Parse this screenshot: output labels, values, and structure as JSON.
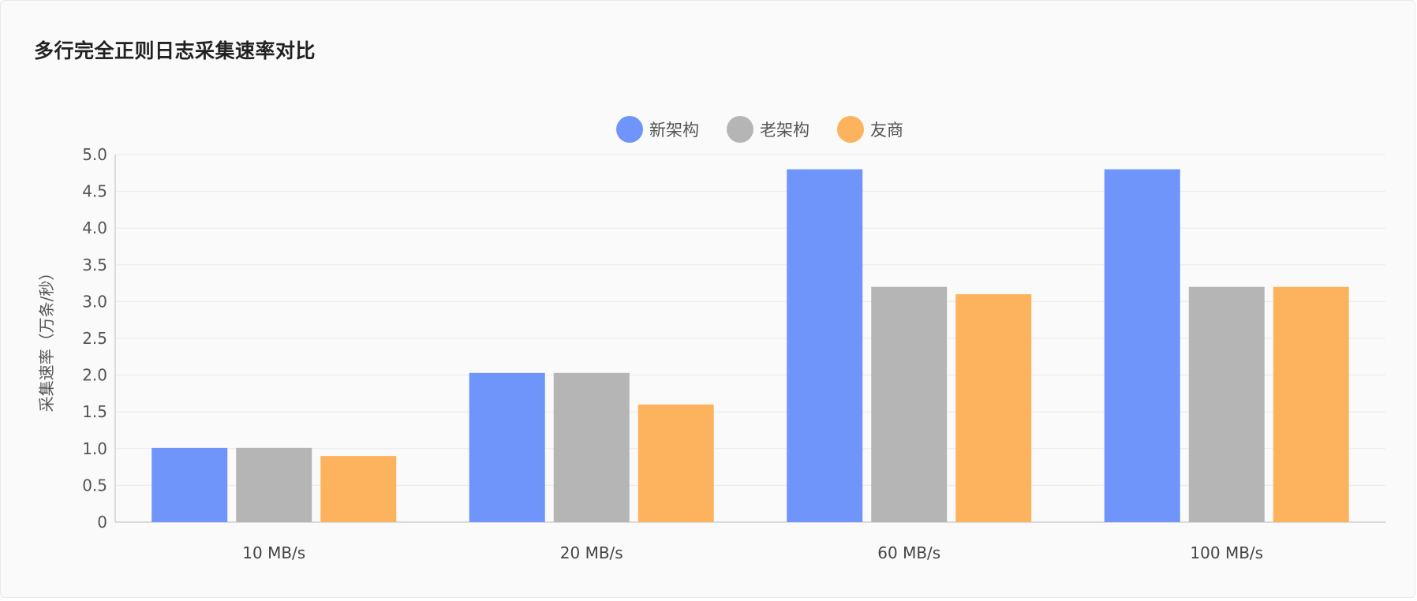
{
  "card": {
    "title": "多行完全正则日志采集速率对比"
  },
  "chart_data": {
    "type": "bar",
    "title": "多行完全正则日志采集速率对比",
    "ylabel": "采集速率（万条/秒）",
    "xlabel": "",
    "categories": [
      "10 MB/s",
      "20 MB/s",
      "60 MB/s",
      "100 MB/s"
    ],
    "ylim": [
      0,
      5.0
    ],
    "yticks": [
      0,
      0.5,
      1.0,
      1.5,
      2.0,
      2.5,
      3.0,
      3.5,
      4.0,
      4.5,
      5.0
    ],
    "ytick_labels": [
      "0",
      "0.5",
      "1.0",
      "1.5",
      "2.0",
      "2.5",
      "3.0",
      "3.5",
      "4.0",
      "4.5",
      "5.0"
    ],
    "grid": true,
    "legend_position": "top-center",
    "series": [
      {
        "name": "新架构",
        "color": "#6f95fb",
        "values": [
          1.01,
          2.03,
          4.8,
          4.8
        ]
      },
      {
        "name": "老架构",
        "color": "#b5b5b5",
        "values": [
          1.01,
          2.03,
          3.2,
          3.2
        ]
      },
      {
        "name": "友商",
        "color": "#fdb35e",
        "values": [
          0.9,
          1.6,
          3.1,
          3.2
        ]
      }
    ]
  }
}
